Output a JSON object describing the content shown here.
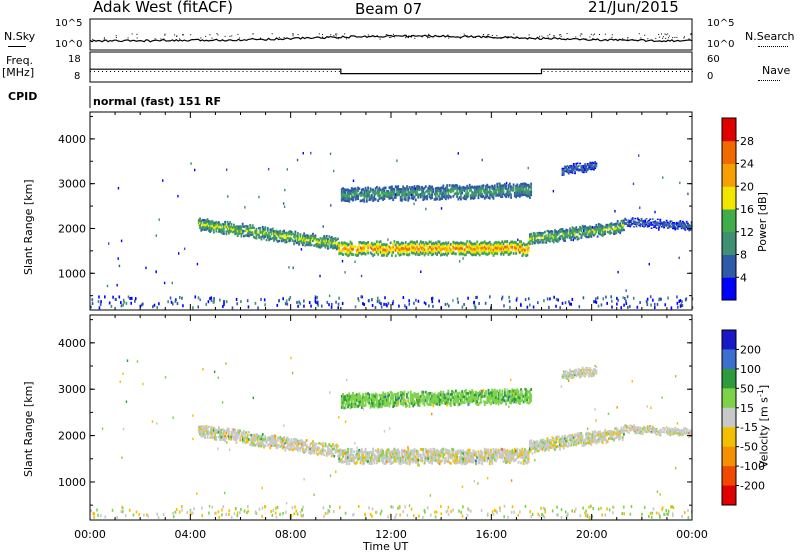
{
  "header": {
    "radar": "Adak West (fitACF)",
    "beam": "Beam 07",
    "date": "21/Jun/2015"
  },
  "strip_labels": {
    "nsky": "N.Sky",
    "freq_line1": "Freq.",
    "freq_line2": "[MHz]",
    "cpid": "CPID",
    "nsearch": "N.Search",
    "nave": "Nave",
    "left_ticks_noise": [
      "10^5",
      "10^0"
    ],
    "right_ticks_noise": [
      "10^5",
      "10^0"
    ],
    "left_ticks_freq": [
      "18",
      "8"
    ],
    "right_ticks_freq": [
      "60",
      "0"
    ],
    "cpid_text": "normal (fast) 151 RF"
  },
  "axes": {
    "ylabel": "Slant Range [km]",
    "xlabel": "Time UT",
    "yticks": [
      "1000",
      "2000",
      "3000",
      "4000"
    ],
    "xticks": [
      "00:00",
      "04:00",
      "08:00",
      "12:00",
      "16:00",
      "20:00",
      "00:00"
    ]
  },
  "power_scale": {
    "label": "Power [dB]",
    "ticks": [
      "4",
      "8",
      "12",
      "16",
      "20",
      "24",
      "28"
    ],
    "colors": [
      "#0000ff",
      "#2e5aa8",
      "#3f8f72",
      "#3fae4a",
      "#f2e600",
      "#f5a000",
      "#f06a00",
      "#e00000"
    ]
  },
  "velocity_scale": {
    "label_main": "Velocity [m s",
    "label_sup": "-1",
    "label_end": "]",
    "ticks": [
      "200",
      "100",
      "50",
      "15",
      "-15",
      "-50",
      "-100",
      "-200"
    ],
    "colors": [
      "#1818c8",
      "#3a6fd0",
      "#2e9a3e",
      "#7ed24a",
      "#c8c8c8",
      "#f2c000",
      "#f59000",
      "#f04a00",
      "#e00000"
    ]
  },
  "chart_data": [
    {
      "type": "heatmap",
      "title": "Power",
      "xlabel": "Time UT",
      "ylabel": "Slant Range [km]",
      "x_range_hours": [
        0,
        24
      ],
      "ylim": [
        180,
        4600
      ],
      "colorbar": {
        "label": "Power [dB]",
        "range": [
          0,
          32
        ]
      },
      "echo_bands": [
        {
          "t_start": 4.3,
          "t_end": 9.9,
          "range_start": 2100,
          "range_end": 1650,
          "width": 260,
          "power": 14
        },
        {
          "t_start": 9.9,
          "t_end": 17.5,
          "range_start": 1550,
          "range_end": 1550,
          "width": 300,
          "power": 20
        },
        {
          "t_start": 17.5,
          "t_end": 21.3,
          "range_start": 1750,
          "range_end": 2050,
          "width": 260,
          "power": 13
        },
        {
          "t_start": 21.3,
          "t_end": 24.0,
          "range_start": 2150,
          "range_end": 2050,
          "width": 160,
          "power": 6
        },
        {
          "t_start": 10.0,
          "t_end": 17.6,
          "range_start": 2750,
          "range_end": 2850,
          "width": 300,
          "power": 10
        },
        {
          "t_start": 18.8,
          "t_end": 20.2,
          "range_start": 3300,
          "range_end": 3400,
          "width": 180,
          "power": 6
        }
      ]
    },
    {
      "type": "heatmap",
      "title": "Velocity",
      "xlabel": "Time UT",
      "ylabel": "Slant Range [km]",
      "x_range_hours": [
        0,
        24
      ],
      "ylim": [
        180,
        4600
      ],
      "colorbar": {
        "label": "Velocity [m s-1]",
        "range": [
          -200,
          200
        ]
      },
      "echo_bands": [
        {
          "t_start": 4.3,
          "t_end": 9.9,
          "range_start": 2100,
          "range_end": 1650,
          "width": 260,
          "velocity": 0
        },
        {
          "t_start": 9.9,
          "t_end": 17.5,
          "range_start": 1550,
          "range_end": 1550,
          "width": 300,
          "velocity": 0
        },
        {
          "t_start": 17.5,
          "t_end": 21.3,
          "range_start": 1750,
          "range_end": 2050,
          "width": 260,
          "velocity": 0
        },
        {
          "t_start": 21.3,
          "t_end": 24.0,
          "range_start": 2150,
          "range_end": 2050,
          "width": 160,
          "velocity": 0
        },
        {
          "t_start": 10.0,
          "t_end": 17.6,
          "range_start": 2750,
          "range_end": 2850,
          "width": 300,
          "velocity": 40
        },
        {
          "t_start": 18.8,
          "t_end": 20.2,
          "range_start": 3300,
          "range_end": 3400,
          "width": 180,
          "velocity": 0
        }
      ]
    },
    {
      "type": "line",
      "title": "Frequency",
      "ylabel": "Freq. [MHz]",
      "segments": [
        {
          "t_start": 0,
          "t_end": 10,
          "value": 12
        },
        {
          "t_start": 10,
          "t_end": 18,
          "value": 10
        },
        {
          "t_start": 18,
          "t_end": 24,
          "value": 12
        }
      ]
    }
  ]
}
